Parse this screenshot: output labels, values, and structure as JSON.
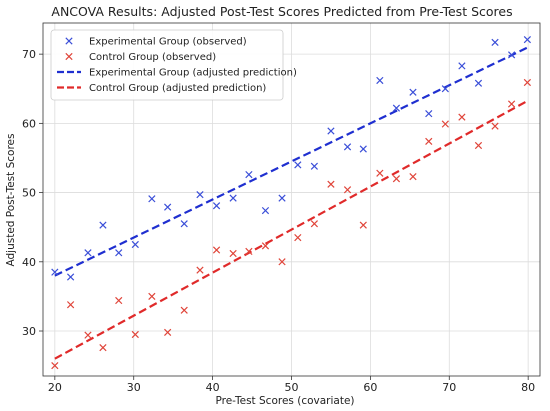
{
  "chart_data": {
    "type": "scatter",
    "title": "ANCOVA Results: Adjusted Post-Test Scores Predicted from Pre-Test Scores",
    "xlabel": "Pre-Test Scores (covariate)",
    "ylabel": "Adjusted Post-Test Scores",
    "xlim": [
      18.5,
      81.5
    ],
    "ylim": [
      23.5,
      74.5
    ],
    "xticks": [
      20,
      30,
      40,
      50,
      60,
      70,
      80
    ],
    "yticks": [
      30,
      40,
      50,
      60,
      70
    ],
    "grid": true,
    "legend_position": "top-left",
    "series": [
      {
        "name": "Experimental Group (observed)",
        "kind": "scatter",
        "marker": "x",
        "color": "#3b4fd8",
        "points": [
          [
            20,
            38.5
          ],
          [
            22,
            37.8
          ],
          [
            24.2,
            41.3
          ],
          [
            26.1,
            45.3
          ],
          [
            28.1,
            41.3
          ],
          [
            30.2,
            42.5
          ],
          [
            32.3,
            49.1
          ],
          [
            34.3,
            47.9
          ],
          [
            36.4,
            45.5
          ],
          [
            38.4,
            49.7
          ],
          [
            40.5,
            48.1
          ],
          [
            42.6,
            49.2
          ],
          [
            44.6,
            52.6
          ],
          [
            46.7,
            47.4
          ],
          [
            48.8,
            49.2
          ],
          [
            50.8,
            54.0
          ],
          [
            52.9,
            53.8
          ],
          [
            55.0,
            58.9
          ],
          [
            57.1,
            56.6
          ],
          [
            59.1,
            56.3
          ],
          [
            61.2,
            66.2
          ],
          [
            63.3,
            62.2
          ],
          [
            65.4,
            64.5
          ],
          [
            67.4,
            61.4
          ],
          [
            69.5,
            65.0
          ],
          [
            71.6,
            68.3
          ],
          [
            73.7,
            65.8
          ],
          [
            75.8,
            71.7
          ],
          [
            77.9,
            69.9
          ],
          [
            79.9,
            72.1
          ]
        ]
      },
      {
        "name": "Control Group (observed)",
        "kind": "scatter",
        "marker": "x",
        "color": "#e0453a",
        "points": [
          [
            20,
            25.0
          ],
          [
            22,
            33.8
          ],
          [
            24.2,
            29.4
          ],
          [
            26.1,
            27.6
          ],
          [
            28.1,
            34.4
          ],
          [
            30.2,
            29.5
          ],
          [
            32.3,
            35.0
          ],
          [
            34.3,
            29.8
          ],
          [
            36.4,
            33.0
          ],
          [
            38.4,
            38.8
          ],
          [
            40.5,
            41.7
          ],
          [
            42.6,
            41.2
          ],
          [
            44.6,
            41.5
          ],
          [
            46.7,
            42.3
          ],
          [
            48.8,
            40.0
          ],
          [
            50.8,
            43.5
          ],
          [
            52.9,
            45.5
          ],
          [
            55.0,
            51.2
          ],
          [
            57.1,
            50.4
          ],
          [
            59.1,
            45.3
          ],
          [
            61.2,
            52.8
          ],
          [
            63.3,
            52.0
          ],
          [
            65.4,
            52.3
          ],
          [
            67.4,
            57.4
          ],
          [
            69.5,
            59.9
          ],
          [
            71.6,
            60.9
          ],
          [
            73.7,
            56.8
          ],
          [
            75.8,
            59.6
          ],
          [
            77.9,
            62.8
          ],
          [
            79.9,
            65.9
          ]
        ]
      },
      {
        "name": "Experimental Group (adjusted prediction)",
        "kind": "line",
        "style": "dashed",
        "color": "#1f2fd0",
        "points": [
          [
            20,
            38.0
          ],
          [
            80,
            71.0
          ]
        ]
      },
      {
        "name": "Control Group (adjusted prediction)",
        "kind": "line",
        "style": "dashed",
        "color": "#e02a2a",
        "points": [
          [
            20,
            26.0
          ],
          [
            80,
            63.3
          ]
        ]
      }
    ]
  }
}
